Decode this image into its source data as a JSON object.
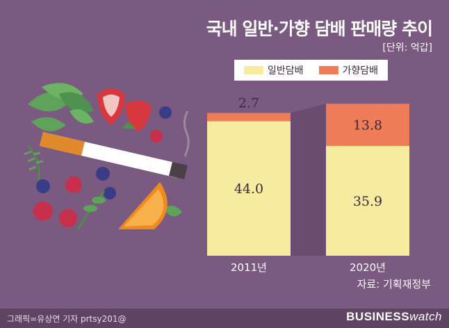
{
  "title": "국내 일반·가향 담배 판매량 추이",
  "unit": "[단위: 억갑]",
  "source": "자료: 기획재정부",
  "credit": "그래픽=유상연 기자 prtsy201@",
  "brand": {
    "bold": "BUSINESS",
    "light": "watch"
  },
  "colors": {
    "background": "#7a5a80",
    "general": "#f6eb9e",
    "flavored": "#ee7c58",
    "connector": "#6b4c70"
  },
  "chart_data": {
    "type": "bar",
    "stacked": true,
    "categories": [
      "2011년",
      "2020년"
    ],
    "series": [
      {
        "name": "일반담배",
        "values": [
          44.0,
          35.9
        ],
        "color": "#f6eb9e"
      },
      {
        "name": "가향담배",
        "values": [
          2.7,
          13.8
        ],
        "color": "#ee7c58"
      }
    ],
    "value_labels": {
      "일반담배": [
        "44.0",
        "35.9"
      ],
      "가향담배": [
        "2.7",
        "13.8"
      ]
    },
    "ylim": [
      0,
      50
    ],
    "legend": "top",
    "grid": false
  }
}
